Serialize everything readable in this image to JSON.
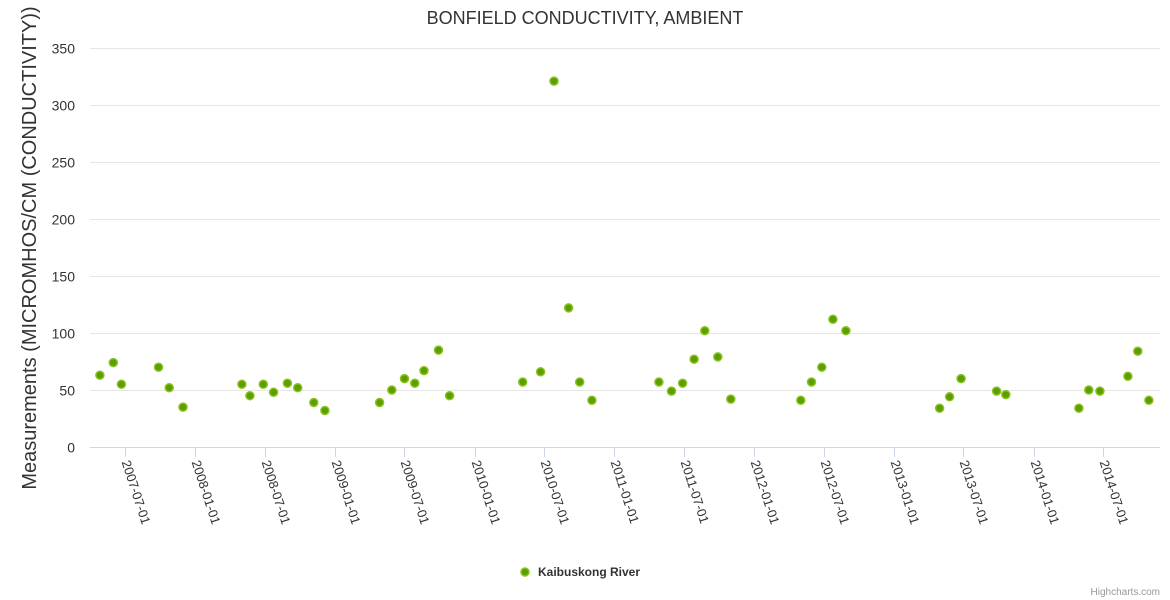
{
  "chart_data": {
    "type": "scatter",
    "title": "BONFIELD CONDUCTIVITY, AMBIENT",
    "xlabel": "",
    "ylabel": "Measurements (MICROMHOS/CM (CONDUCTIVITY))",
    "ylim": [
      0,
      350
    ],
    "yticks": [
      0,
      50,
      100,
      150,
      200,
      250,
      300,
      350
    ],
    "xlim": [
      "2007-04-01",
      "2014-11-27"
    ],
    "xticks": [
      "2007-07-01",
      "2008-01-01",
      "2008-07-01",
      "2009-01-01",
      "2009-07-01",
      "2010-01-01",
      "2010-07-01",
      "2011-01-01",
      "2011-07-01",
      "2012-01-01",
      "2012-07-01",
      "2013-01-01",
      "2013-07-01",
      "2014-01-01",
      "2014-07-01"
    ],
    "grid": true,
    "legend_position": "bottom-center",
    "series": [
      {
        "name": "Kaibuskong River",
        "color": "#5a9e00",
        "points": [
          [
            "2007-04-27",
            63
          ],
          [
            "2007-06-01",
            74
          ],
          [
            "2007-06-22",
            55
          ],
          [
            "2007-09-27",
            70
          ],
          [
            "2007-10-25",
            52
          ],
          [
            "2007-11-30",
            35
          ],
          [
            "2008-05-02",
            55
          ],
          [
            "2008-05-23",
            45
          ],
          [
            "2008-06-27",
            55
          ],
          [
            "2008-07-24",
            48
          ],
          [
            "2008-08-29",
            56
          ],
          [
            "2008-09-25",
            52
          ],
          [
            "2008-11-06",
            39
          ],
          [
            "2008-12-05",
            32
          ],
          [
            "2009-04-27",
            39
          ],
          [
            "2009-05-29",
            50
          ],
          [
            "2009-07-01",
            60
          ],
          [
            "2009-07-28",
            56
          ],
          [
            "2009-08-21",
            67
          ],
          [
            "2009-09-28",
            85
          ],
          [
            "2009-10-27",
            45
          ],
          [
            "2010-05-06",
            57
          ],
          [
            "2010-06-22",
            66
          ],
          [
            "2010-07-27",
            321
          ],
          [
            "2010-09-03",
            122
          ],
          [
            "2010-10-02",
            57
          ],
          [
            "2010-11-03",
            41
          ],
          [
            "2011-04-27",
            57
          ],
          [
            "2011-05-30",
            49
          ],
          [
            "2011-06-28",
            56
          ],
          [
            "2011-07-28",
            77
          ],
          [
            "2011-08-25",
            102
          ],
          [
            "2011-09-28",
            79
          ],
          [
            "2011-11-01",
            42
          ],
          [
            "2012-05-02",
            41
          ],
          [
            "2012-05-30",
            57
          ],
          [
            "2012-06-26",
            70
          ],
          [
            "2012-07-25",
            112
          ],
          [
            "2012-08-28",
            102
          ],
          [
            "2013-04-30",
            34
          ],
          [
            "2013-05-26",
            44
          ],
          [
            "2013-06-25",
            60
          ],
          [
            "2013-09-26",
            49
          ],
          [
            "2013-10-20",
            46
          ],
          [
            "2014-04-29",
            34
          ],
          [
            "2014-05-25",
            50
          ],
          [
            "2014-06-23",
            49
          ],
          [
            "2014-09-04",
            62
          ],
          [
            "2014-09-30",
            84
          ],
          [
            "2014-10-29",
            41
          ]
        ]
      }
    ],
    "credits": "Highcharts.com"
  }
}
